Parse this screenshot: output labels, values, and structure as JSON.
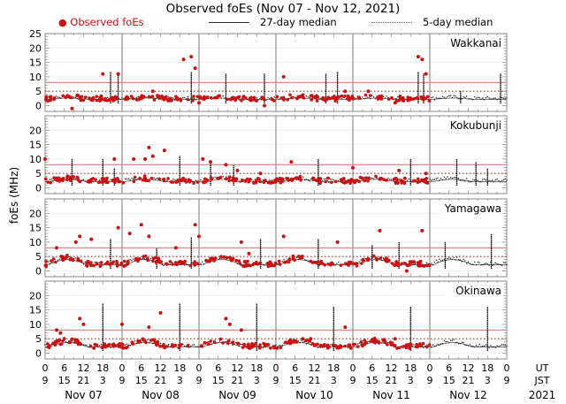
{
  "chart_data": {
    "type": "scatter",
    "title": "Observed foEs (Nov 07 - Nov 12, 2021)",
    "legend": [
      {
        "label": "Observed foEs",
        "style": "red-dot",
        "color": "#cc1111"
      },
      {
        "label": "27-day median",
        "style": "solid-line"
      },
      {
        "label": "5-day median",
        "style": "dotted-line"
      }
    ],
    "legend_position": "top",
    "ylabel": "foEs (MHz)",
    "ylim": [
      -2,
      25
    ],
    "yticks": [
      0,
      5,
      10,
      15,
      20,
      25
    ],
    "yticks_lower_panels": [
      0,
      5,
      10,
      15,
      20
    ],
    "x_ut_ticks": [
      "0",
      "6",
      "12",
      "18",
      "0",
      "6",
      "12",
      "18",
      "0",
      "6",
      "12",
      "18",
      "0",
      "6",
      "12",
      "18",
      "0",
      "6",
      "12",
      "18",
      "0",
      "6",
      "12",
      "18",
      "0"
    ],
    "x_jst_ticks": [
      "9",
      "15",
      "21",
      "3",
      "9",
      "15",
      "21",
      "3",
      "9",
      "15",
      "21",
      "3",
      "9",
      "15",
      "21",
      "3",
      "9",
      "15",
      "21",
      "3",
      "9",
      "15",
      "21",
      "3",
      "9"
    ],
    "ut_label": "UT",
    "jst_label": "JST",
    "days": [
      "Nov 07",
      "Nov 08",
      "Nov 09",
      "Nov 10",
      "Nov 11",
      "Nov 12"
    ],
    "year": "2021",
    "panels": [
      {
        "station": "Wakkanai",
        "level_27day": 8,
        "level_5day": 5,
        "base": 2.5,
        "amp": 0.8,
        "spikes": [
          [
            0.85,
            12
          ],
          [
            0.95,
            11
          ],
          [
            1.9,
            12
          ],
          [
            2.35,
            11
          ],
          [
            2.85,
            11
          ],
          [
            3.65,
            11
          ],
          [
            3.8,
            12
          ],
          [
            4.85,
            12
          ],
          [
            4.92,
            11
          ],
          [
            5.92,
            11
          ],
          [
            5.4,
            5
          ]
        ],
        "outliers": [
          [
            0.75,
            11
          ],
          [
            0.95,
            11
          ],
          [
            1.4,
            5
          ],
          [
            1.8,
            16
          ],
          [
            1.9,
            17
          ],
          [
            1.95,
            13
          ],
          [
            2.0,
            1
          ],
          [
            2.85,
            0
          ],
          [
            3.1,
            10
          ],
          [
            3.9,
            5
          ],
          [
            4.2,
            5
          ],
          [
            4.55,
            1
          ],
          [
            4.85,
            17
          ],
          [
            4.9,
            16
          ],
          [
            4.95,
            11
          ],
          [
            0.35,
            -1
          ]
        ],
        "obs_until": 5.0
      },
      {
        "station": "Kokubunji",
        "level_27day": 8,
        "level_5day": 5,
        "base": 2.5,
        "amp": 1.5,
        "spikes": [
          [
            0.35,
            10
          ],
          [
            0.75,
            10
          ],
          [
            0.9,
            7
          ],
          [
            1.75,
            11
          ],
          [
            2.15,
            9
          ],
          [
            2.45,
            8
          ],
          [
            3.55,
            10
          ],
          [
            4.75,
            10
          ],
          [
            5.35,
            10
          ],
          [
            5.6,
            9
          ],
          [
            5.75,
            7
          ]
        ],
        "outliers": [
          [
            0.0,
            10
          ],
          [
            0.9,
            10
          ],
          [
            1.15,
            10
          ],
          [
            1.35,
            14
          ],
          [
            1.3,
            10
          ],
          [
            1.4,
            11
          ],
          [
            1.55,
            13
          ],
          [
            2.05,
            10
          ],
          [
            2.15,
            9
          ],
          [
            2.35,
            8
          ],
          [
            2.5,
            6
          ],
          [
            2.8,
            5
          ],
          [
            3.2,
            9
          ],
          [
            4.0,
            7
          ],
          [
            4.6,
            6
          ],
          [
            4.95,
            5
          ]
        ],
        "obs_until": 5.0
      },
      {
        "station": "Yamagawa",
        "level_27day": 8,
        "level_5day": 5,
        "base": 2.5,
        "amp": 3.5,
        "spikes": [
          [
            0.85,
            11
          ],
          [
            1.45,
            8
          ],
          [
            1.9,
            12
          ],
          [
            2.8,
            11
          ],
          [
            3.55,
            11
          ],
          [
            4.25,
            9
          ],
          [
            4.6,
            10
          ],
          [
            5.2,
            10
          ],
          [
            5.8,
            13
          ]
        ],
        "outliers": [
          [
            0.15,
            8
          ],
          [
            0.4,
            10
          ],
          [
            0.45,
            12
          ],
          [
            0.6,
            11
          ],
          [
            0.95,
            15
          ],
          [
            1.1,
            13
          ],
          [
            1.25,
            16
          ],
          [
            1.35,
            12
          ],
          [
            1.7,
            8
          ],
          [
            1.95,
            16
          ],
          [
            2.0,
            12
          ],
          [
            2.55,
            10
          ],
          [
            2.65,
            6
          ],
          [
            3.1,
            12
          ],
          [
            3.8,
            10
          ],
          [
            4.35,
            14
          ],
          [
            4.7,
            0
          ],
          [
            4.9,
            14
          ]
        ],
        "obs_until": 5.0
      },
      {
        "station": "Okinawa",
        "level_27day": 8,
        "level_5day": 5,
        "base": 2.5,
        "amp": 3.0,
        "spikes": [
          [
            0.75,
            17
          ],
          [
            1.75,
            17
          ],
          [
            2.75,
            17
          ],
          [
            3.75,
            16
          ],
          [
            4.75,
            16
          ],
          [
            5.75,
            16
          ]
        ],
        "outliers": [
          [
            0.15,
            8
          ],
          [
            0.2,
            7
          ],
          [
            0.45,
            12
          ],
          [
            0.5,
            10
          ],
          [
            1.0,
            10
          ],
          [
            1.35,
            9
          ],
          [
            1.5,
            14
          ],
          [
            2.35,
            12
          ],
          [
            2.4,
            10
          ],
          [
            2.55,
            8
          ],
          [
            3.35,
            5
          ],
          [
            3.45,
            5
          ],
          [
            3.9,
            9
          ],
          [
            4.5,
            3
          ],
          [
            4.55,
            5
          ]
        ],
        "obs_until": 5.0
      }
    ]
  }
}
